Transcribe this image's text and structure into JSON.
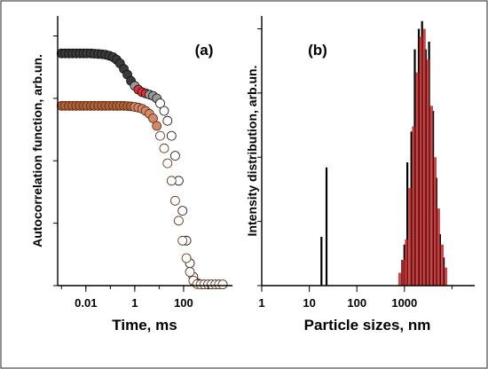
{
  "chart_data": [
    {
      "type": "scatter",
      "panel_label": "(a)",
      "xlabel": "Time, ms",
      "ylabel": "Autocorrelation function, arb.un.",
      "xscale": "log",
      "xlim": [
        0.0007,
        10000
      ],
      "ylim": [
        0,
        1.08
      ],
      "x_ticks": [
        {
          "value": 0.01,
          "label": "0.01"
        },
        {
          "value": 1,
          "label": "1"
        },
        {
          "value": 100,
          "label": "100"
        }
      ],
      "y_tick_labels_shown": false,
      "grid": false,
      "series": [
        {
          "colors": {
            "face": "#3a3a3a",
            "edge": "#111111",
            "late_face": "#ffffff",
            "accent": "#e0303a"
          },
          "points": [
            [
              0.001,
              0.93
            ],
            [
              0.0014,
              0.93
            ],
            [
              0.002,
              0.93
            ],
            [
              0.0028,
              0.93
            ],
            [
              0.004,
              0.93
            ],
            [
              0.0056,
              0.93
            ],
            [
              0.008,
              0.93
            ],
            [
              0.011,
              0.93
            ],
            [
              0.016,
              0.93
            ],
            [
              0.022,
              0.929
            ],
            [
              0.032,
              0.928
            ],
            [
              0.045,
              0.927
            ],
            [
              0.063,
              0.925
            ],
            [
              0.09,
              0.921
            ],
            [
              0.13,
              0.915
            ],
            [
              0.18,
              0.905
            ],
            [
              0.25,
              0.89
            ],
            [
              0.36,
              0.868
            ],
            [
              0.5,
              0.845
            ],
            [
              0.7,
              0.82
            ],
            [
              1.0,
              0.8
            ],
            [
              1.4,
              0.785
            ],
            [
              2.0,
              0.775
            ],
            [
              2.8,
              0.77
            ],
            [
              4.0,
              0.765
            ],
            [
              5.6,
              0.76
            ],
            [
              8.0,
              0.75
            ],
            [
              11,
              0.73
            ],
            [
              16,
              0.7
            ],
            [
              22,
              0.66
            ],
            [
              32,
              0.6
            ],
            [
              45,
              0.52
            ],
            [
              63,
              0.42
            ],
            [
              90,
              0.3
            ],
            [
              130,
              0.18
            ],
            [
              180,
              0.09
            ],
            [
              250,
              0.035
            ],
            [
              360,
              0.01
            ],
            [
              500,
              0.005
            ],
            [
              700,
              0.005
            ],
            [
              1000,
              0.005
            ],
            [
              1400,
              0.005
            ],
            [
              2000,
              0.005
            ],
            [
              2800,
              0.005
            ],
            [
              4000,
              0.005
            ]
          ]
        },
        {
          "colors": {
            "face": "#b0603a",
            "edge": "#5a2a10",
            "late_face": "#ffffff",
            "accent": "#e0303a"
          },
          "points": [
            [
              0.001,
              0.72
            ],
            [
              0.0014,
              0.72
            ],
            [
              0.002,
              0.72
            ],
            [
              0.0028,
              0.72
            ],
            [
              0.004,
              0.72
            ],
            [
              0.0056,
              0.72
            ],
            [
              0.008,
              0.72
            ],
            [
              0.011,
              0.72
            ],
            [
              0.016,
              0.72
            ],
            [
              0.022,
              0.72
            ],
            [
              0.032,
              0.72
            ],
            [
              0.045,
              0.72
            ],
            [
              0.063,
              0.72
            ],
            [
              0.09,
              0.72
            ],
            [
              0.13,
              0.72
            ],
            [
              0.18,
              0.72
            ],
            [
              0.25,
              0.72
            ],
            [
              0.36,
              0.72
            ],
            [
              0.5,
              0.719
            ],
            [
              0.7,
              0.718
            ],
            [
              1.0,
              0.716
            ],
            [
              1.4,
              0.713
            ],
            [
              2.0,
              0.708
            ],
            [
              2.8,
              0.7
            ],
            [
              4.0,
              0.688
            ],
            [
              5.6,
              0.67
            ],
            [
              8.0,
              0.64
            ],
            [
              11,
              0.6
            ],
            [
              16,
              0.55
            ],
            [
              22,
              0.49
            ],
            [
              32,
              0.42
            ],
            [
              45,
              0.34
            ],
            [
              63,
              0.26
            ],
            [
              90,
              0.18
            ],
            [
              130,
              0.11
            ],
            [
              180,
              0.055
            ],
            [
              250,
              0.02
            ],
            [
              360,
              0.006
            ],
            [
              500,
              0.005
            ],
            [
              700,
              0.005
            ],
            [
              1000,
              0.005
            ],
            [
              1400,
              0.005
            ],
            [
              2000,
              0.005
            ],
            [
              2800,
              0.005
            ],
            [
              4000,
              0.005
            ]
          ]
        }
      ]
    },
    {
      "type": "bar",
      "panel_label": "(b)",
      "xlabel": "Particle sizes, nm",
      "ylabel": "Intensity distribution, arb.un.",
      "xscale": "log",
      "xlim": [
        1,
        30000
      ],
      "ylim": [
        0,
        1.05
      ],
      "x_ticks": [
        {
          "value": 1,
          "label": "1"
        },
        {
          "value": 10,
          "label": "10"
        },
        {
          "value": 100,
          "label": "100"
        },
        {
          "value": 1000,
          "label": "1000"
        }
      ],
      "y_tick_labels_shown": false,
      "grid": false,
      "series": [
        {
          "color": "#000000",
          "bars": [
            {
              "x": 18,
              "y": 0.19
            },
            {
              "x": 23,
              "y": 0.46
            },
            {
              "x": 900,
              "y": 0.1
            },
            {
              "x": 1000,
              "y": 0.16
            },
            {
              "x": 1150,
              "y": 0.48
            },
            {
              "x": 1400,
              "y": 0.6
            },
            {
              "x": 1650,
              "y": 0.92
            },
            {
              "x": 2000,
              "y": 1.0
            },
            {
              "x": 2350,
              "y": 1.03
            },
            {
              "x": 2800,
              "y": 0.92
            },
            {
              "x": 3300,
              "y": 0.95
            },
            {
              "x": 4000,
              "y": 0.68
            },
            {
              "x": 4700,
              "y": 0.42
            },
            {
              "x": 5600,
              "y": 0.2
            },
            {
              "x": 6700,
              "y": 0.11
            }
          ]
        },
        {
          "color": "#c0282a",
          "bars": [
            {
              "x": 800,
              "y": 0.05
            },
            {
              "x": 950,
              "y": 0.1
            },
            {
              "x": 1100,
              "y": 0.18
            },
            {
              "x": 1300,
              "y": 0.38
            },
            {
              "x": 1550,
              "y": 0.62
            },
            {
              "x": 1850,
              "y": 0.83
            },
            {
              "x": 2200,
              "y": 0.97
            },
            {
              "x": 2600,
              "y": 1.0
            },
            {
              "x": 3100,
              "y": 0.88
            },
            {
              "x": 3700,
              "y": 0.7
            },
            {
              "x": 4400,
              "y": 0.5
            },
            {
              "x": 5200,
              "y": 0.3
            },
            {
              "x": 6200,
              "y": 0.16
            },
            {
              "x": 7400,
              "y": 0.07
            }
          ]
        }
      ]
    }
  ]
}
